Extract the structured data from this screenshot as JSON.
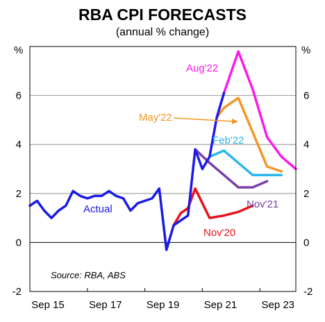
{
  "chart_data": {
    "type": "line",
    "title": "RBA CPI FORECASTS",
    "subtitle": "(annual % change)",
    "y_unit_left": "%",
    "y_unit_right": "%",
    "ylim": [
      -2,
      8
    ],
    "yticks": [
      -2,
      0,
      2,
      4,
      6
    ],
    "xlim": [
      "2015-09",
      "2024-12"
    ],
    "xticks": [
      {
        "x": "2015-09",
        "label": "Sep 15"
      },
      {
        "x": "2017-09",
        "label": "Sep 17"
      },
      {
        "x": "2019-09",
        "label": "Sep 19"
      },
      {
        "x": "2021-09",
        "label": "Sep 21"
      },
      {
        "x": "2023-09",
        "label": "Sep 23"
      }
    ],
    "grid": true,
    "source": "Source: RBA, ABS",
    "series": [
      {
        "name": "Actual",
        "color": "#1a1ae6",
        "points": [
          [
            "2015-09",
            1.5
          ],
          [
            "2015-12",
            1.7
          ],
          [
            "2016-03",
            1.3
          ],
          [
            "2016-06",
            1.0
          ],
          [
            "2016-09",
            1.3
          ],
          [
            "2016-12",
            1.5
          ],
          [
            "2017-03",
            2.1
          ],
          [
            "2017-06",
            1.9
          ],
          [
            "2017-09",
            1.8
          ],
          [
            "2017-12",
            1.9
          ],
          [
            "2018-03",
            1.9
          ],
          [
            "2018-06",
            2.1
          ],
          [
            "2018-09",
            1.9
          ],
          [
            "2018-12",
            1.8
          ],
          [
            "2019-03",
            1.3
          ],
          [
            "2019-06",
            1.6
          ],
          [
            "2019-09",
            1.7
          ],
          [
            "2019-12",
            1.8
          ],
          [
            "2020-03",
            2.2
          ],
          [
            "2020-06",
            -0.3
          ],
          [
            "2020-09",
            0.7
          ],
          [
            "2020-12",
            0.9
          ],
          [
            "2021-03",
            1.1
          ],
          [
            "2021-06",
            3.8
          ],
          [
            "2021-09",
            3.0
          ],
          [
            "2021-12",
            3.5
          ],
          [
            "2022-03",
            5.1
          ],
          [
            "2022-06",
            6.1
          ]
        ]
      },
      {
        "name": "Nov'20",
        "color": "#e8121c",
        "points": [
          [
            "2020-09",
            0.7
          ],
          [
            "2020-12",
            1.2
          ],
          [
            "2021-03",
            1.4
          ],
          [
            "2021-06",
            2.2
          ],
          [
            "2021-12",
            1.0
          ],
          [
            "2022-06",
            1.1
          ],
          [
            "2022-12",
            1.25
          ],
          [
            "2023-06",
            1.5
          ]
        ]
      },
      {
        "name": "Nov'21",
        "color": "#7a3fa8",
        "points": [
          [
            "2021-06",
            3.8
          ],
          [
            "2021-12",
            3.25
          ],
          [
            "2022-06",
            2.75
          ],
          [
            "2022-12",
            2.25
          ],
          [
            "2023-06",
            2.25
          ],
          [
            "2023-12",
            2.5
          ]
        ]
      },
      {
        "name": "Feb'22",
        "color": "#29b6e8",
        "points": [
          [
            "2021-12",
            3.5
          ],
          [
            "2022-06",
            3.75
          ],
          [
            "2022-12",
            3.25
          ],
          [
            "2023-06",
            2.75
          ],
          [
            "2023-12",
            2.75
          ],
          [
            "2024-06",
            2.75
          ]
        ]
      },
      {
        "name": "May'22",
        "color": "#f39625",
        "points": [
          [
            "2022-03",
            5.1
          ],
          [
            "2022-06",
            5.5
          ],
          [
            "2022-12",
            5.9
          ],
          [
            "2023-06",
            4.5
          ],
          [
            "2023-12",
            3.1
          ],
          [
            "2024-06",
            2.9
          ]
        ]
      },
      {
        "name": "Aug'22",
        "color": "#ff18e8",
        "points": [
          [
            "2022-06",
            6.1
          ],
          [
            "2022-12",
            7.8
          ],
          [
            "2023-06",
            6.25
          ],
          [
            "2023-12",
            4.3
          ],
          [
            "2024-06",
            3.5
          ],
          [
            "2024-12",
            3.0
          ]
        ]
      }
    ]
  }
}
